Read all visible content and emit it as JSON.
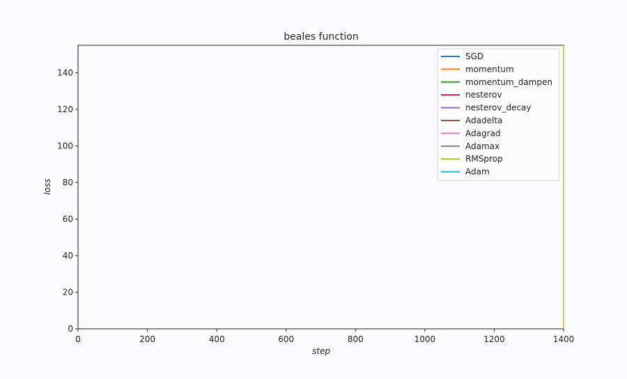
{
  "chart_data": {
    "type": "line",
    "title": "beales function",
    "xlabel": "step",
    "ylabel": "loss",
    "xlim": [
      0,
      1400
    ],
    "ylim": [
      0,
      155
    ],
    "xticks": [
      0,
      200,
      400,
      600,
      800,
      1000,
      1200,
      1400
    ],
    "yticks": [
      0,
      20,
      40,
      60,
      80,
      100,
      120,
      140
    ],
    "grid": false,
    "legend_position": "top-right",
    "series": [
      {
        "name": "SGD",
        "color": "#1f77b4",
        "x": [
          1400,
          1400
        ],
        "y": [
          0,
          0
        ]
      },
      {
        "name": "momentum",
        "color": "#ff7f0e",
        "x": [
          1400,
          1400
        ],
        "y": [
          0,
          0
        ]
      },
      {
        "name": "momentum_dampen",
        "color": "#2ca02c",
        "x": [
          1400,
          1400
        ],
        "y": [
          0,
          0
        ]
      },
      {
        "name": "nesterov",
        "color": "#c2185b",
        "x": [
          1400,
          1400
        ],
        "y": [
          0,
          0
        ]
      },
      {
        "name": "nesterov_decay",
        "color": "#9467bd",
        "x": [
          1400,
          1400
        ],
        "y": [
          0,
          0
        ]
      },
      {
        "name": "Adadelta",
        "color": "#8c564b",
        "x": [
          1400,
          1400
        ],
        "y": [
          0,
          0
        ]
      },
      {
        "name": "Adagrad",
        "color": "#e377c2",
        "x": [
          1400,
          1400
        ],
        "y": [
          0,
          0
        ]
      },
      {
        "name": "Adamax",
        "color": "#7f7f7f",
        "x": [
          1400,
          1400
        ],
        "y": [
          0,
          0
        ]
      },
      {
        "name": "RMSprop",
        "color": "#bcbd22",
        "x": [
          1400,
          1400,
          1400,
          1400
        ],
        "y": [
          155,
          140,
          80,
          0
        ]
      },
      {
        "name": "Adam",
        "color": "#17becf",
        "x": [
          1400,
          1400
        ],
        "y": [
          0,
          0
        ]
      }
    ]
  }
}
